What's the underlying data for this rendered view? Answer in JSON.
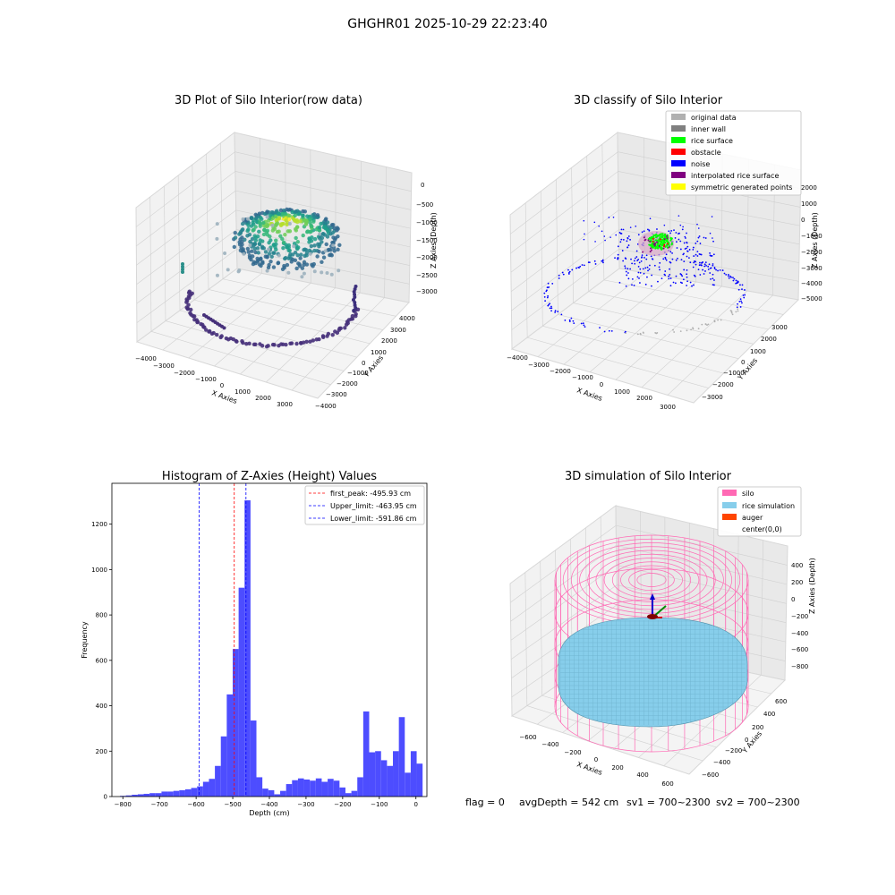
{
  "suptitle": "GHGHR01 2025-10-29 22:23:40",
  "footer": {
    "flag": "flag = 0",
    "avg_depth": "avgDepth = 542 cm",
    "sv1": "sv1 = 700~2300",
    "sv2": "sv2 = 700~2300"
  },
  "colors": {
    "hist_bar": "#4d4dff",
    "first_peak_line": "#ff0000",
    "limit_line": "#0000ff",
    "pane_light": "#f2f2f2",
    "pane_mid": "#ebebeb",
    "silo": "#ff69b4",
    "rice_simulation": "#87ceeb",
    "auger": "#ff4500"
  },
  "chart_data": [
    {
      "type": "scatter",
      "subtype": "3d",
      "title": "3D Plot of Silo Interior(row data)",
      "xlabel": "X Axies",
      "ylabel": "Y Axies",
      "zlabel": "Z Axies (Depth)",
      "xticks": [
        "−4000",
        "−3000",
        "−2000",
        "−1000",
        "0",
        "1000",
        "2000",
        "3000"
      ],
      "yticks": [
        "4000",
        "3000",
        "2000",
        "1000",
        "0",
        "−1000",
        "−2000",
        "−3000",
        "−4000"
      ],
      "zticks": [
        "0",
        "−500",
        "−1000",
        "−1500",
        "−2000",
        "−2500",
        "−3000"
      ],
      "colormap": "viridis"
    },
    {
      "type": "scatter",
      "subtype": "3d",
      "title": "3D classify of Silo Interior",
      "xlabel": "X Axies",
      "ylabel": "Y Axies",
      "zlabel": "Z Axies (Depth)",
      "xticks": [
        "−4000",
        "−3000",
        "−2000",
        "−1000",
        "0",
        "1000",
        "2000",
        "3000"
      ],
      "yticks": [
        "3000",
        "2000",
        "1000",
        "0",
        "−1000",
        "−2000",
        "−3000"
      ],
      "zticks": [
        "2000",
        "1000",
        "0",
        "−1000",
        "−2000",
        "−3000",
        "−4000",
        "−5000"
      ],
      "legend_position": "top-right",
      "legend": [
        {
          "name": "original data",
          "color": "#b0b0b0"
        },
        {
          "name": "inner wall",
          "color": "#808080"
        },
        {
          "name": "rice surface",
          "color": "#00ff00"
        },
        {
          "name": "obstacle",
          "color": "#ff0000"
        },
        {
          "name": "noise",
          "color": "#0000ff"
        },
        {
          "name": "interpolated rice surface",
          "color": "#800080"
        },
        {
          "name": "symmetric generated points",
          "color": "#ffff00"
        }
      ]
    },
    {
      "type": "bar",
      "subtype": "histogram",
      "title": "Histogram of Z-Axies (Height) Values",
      "xlabel": "Depth (cm)",
      "ylabel": "Frequency",
      "xlim": [
        -830,
        30
      ],
      "ylim": [
        0,
        1380
      ],
      "xticks": [
        -800,
        -700,
        -600,
        -500,
        -400,
        -300,
        -200,
        -100,
        0
      ],
      "xtick_labels": [
        "−800",
        "−700",
        "−600",
        "−500",
        "−400",
        "−300",
        "−200",
        "−100",
        "0"
      ],
      "yticks": [
        0,
        200,
        400,
        600,
        800,
        1000,
        1200
      ],
      "yticks_labels": [
        "0",
        "200",
        "400",
        "600",
        "800",
        "1000",
        "1200"
      ],
      "bin_width": 16.2,
      "bin_start": -808,
      "values": [
        3,
        5,
        8,
        10,
        12,
        15,
        15,
        22,
        22,
        25,
        28,
        32,
        38,
        45,
        65,
        78,
        135,
        265,
        450,
        650,
        920,
        1305,
        335,
        85,
        35,
        28,
        10,
        25,
        55,
        72,
        80,
        75,
        70,
        80,
        65,
        78,
        70,
        40,
        15,
        25,
        85,
        375,
        195,
        200,
        160,
        135,
        200,
        350,
        105,
        200,
        145
      ],
      "legend_position": "top-right",
      "lines": [
        {
          "name": "first_peak: -495.93 cm",
          "x": -495.93,
          "style": "dashed",
          "color": "#ff0000"
        },
        {
          "name": "Upper_limit: -463.95 cm",
          "x": -463.95,
          "style": "dashed",
          "color": "#0000ff"
        },
        {
          "name": "Lower_limit: -591.86 cm",
          "x": -591.86,
          "style": "dashed",
          "color": "#0000ff"
        }
      ]
    },
    {
      "type": "surface",
      "subtype": "3d",
      "title": "3D simulation of Silo Interior",
      "xlabel": "X Axies",
      "ylabel": "Y Axies",
      "zlabel": "Z Axies (Depth)",
      "xticks": [
        "−600",
        "−400",
        "−200",
        "0",
        "200",
        "400",
        "600"
      ],
      "yticks": [
        "600",
        "400",
        "200",
        "0",
        "−200",
        "−400",
        "−600"
      ],
      "zticks": [
        "400",
        "200",
        "0",
        "−200",
        "−400",
        "−600",
        "−800"
      ],
      "legend_position": "top-right",
      "legend": [
        {
          "name": "silo",
          "color": "#ff69b4"
        },
        {
          "name": "rice simulation",
          "color": "#87ceeb"
        },
        {
          "name": "auger",
          "color": "#ff4500"
        },
        {
          "name": "center(0,0)",
          "color": ""
        }
      ]
    }
  ]
}
